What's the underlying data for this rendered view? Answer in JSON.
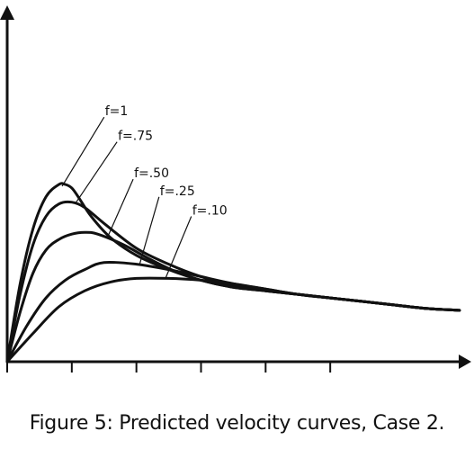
{
  "caption": "Figure 5: Predicted velocity curves, Case 2.",
  "chart_data": {
    "type": "line",
    "title": "",
    "xlabel": "",
    "ylabel": "",
    "grid": false,
    "legend": "none",
    "line_color": "#111111",
    "series": [
      {
        "name": "f=1",
        "x": [
          0,
          0.2,
          0.4,
          0.6,
          0.8,
          0.9,
          1.0,
          1.1,
          1.3,
          1.6,
          2.0,
          2.5,
          3.0,
          3.5,
          4.0,
          4.5,
          5.0,
          5.5,
          6.0,
          6.5,
          7.0
        ],
        "y": [
          0.0,
          0.44,
          0.75,
          0.93,
          1.0,
          1.0,
          0.98,
          0.93,
          0.82,
          0.7,
          0.6,
          0.52,
          0.46,
          0.42,
          0.4,
          0.38,
          0.36,
          0.34,
          0.32,
          0.3,
          0.29
        ]
      },
      {
        "name": "f=.75",
        "x": [
          0,
          0.2,
          0.4,
          0.6,
          0.8,
          1.0,
          1.2,
          1.5,
          2.0,
          2.5,
          3.0,
          3.5,
          4.0,
          4.5,
          5.0,
          5.5,
          6.0,
          6.5,
          7.0
        ],
        "y": [
          0.0,
          0.38,
          0.66,
          0.82,
          0.89,
          0.9,
          0.87,
          0.78,
          0.64,
          0.55,
          0.48,
          0.43,
          0.4,
          0.38,
          0.36,
          0.34,
          0.32,
          0.3,
          0.29
        ]
      },
      {
        "name": "f=.50",
        "x": [
          0,
          0.2,
          0.4,
          0.6,
          0.8,
          1.0,
          1.2,
          1.4,
          1.8,
          2.2,
          2.6,
          3.0,
          3.5,
          4.0,
          4.5,
          5.0,
          5.5,
          6.0,
          6.5,
          7.0
        ],
        "y": [
          0.0,
          0.28,
          0.5,
          0.63,
          0.69,
          0.72,
          0.73,
          0.72,
          0.66,
          0.58,
          0.51,
          0.46,
          0.42,
          0.4,
          0.38,
          0.36,
          0.34,
          0.32,
          0.3,
          0.29
        ]
      },
      {
        "name": "f=.25",
        "x": [
          0,
          0.3,
          0.6,
          0.9,
          1.2,
          1.5,
          2.0,
          2.5,
          3.0,
          3.5,
          4.0,
          4.5,
          5.0,
          5.5,
          6.0,
          6.5,
          7.0
        ],
        "y": [
          0.0,
          0.2,
          0.36,
          0.46,
          0.52,
          0.56,
          0.55,
          0.52,
          0.48,
          0.44,
          0.41,
          0.38,
          0.36,
          0.34,
          0.32,
          0.3,
          0.29
        ]
      },
      {
        "name": "f=.10",
        "x": [
          0,
          0.4,
          0.8,
          1.2,
          1.6,
          2.0,
          2.5,
          3.0,
          3.5,
          4.0,
          4.5,
          5.0,
          5.5,
          6.0,
          6.5,
          7.0
        ],
        "y": [
          0.0,
          0.16,
          0.31,
          0.4,
          0.45,
          0.47,
          0.47,
          0.46,
          0.44,
          0.41,
          0.38,
          0.36,
          0.34,
          0.32,
          0.3,
          0.29
        ]
      }
    ],
    "labels": [
      {
        "series": "f=1",
        "text": "f=1",
        "anchor_x": 0.85,
        "anchor_y": 0.99,
        "label_x": 1.5,
        "label_y": 1.38
      },
      {
        "series": "f=.75",
        "text": "f=.75",
        "anchor_x": 1.05,
        "anchor_y": 0.89,
        "label_x": 1.7,
        "label_y": 1.24
      },
      {
        "series": "f=.50",
        "text": "f=.50",
        "anchor_x": 1.55,
        "anchor_y": 0.7,
        "label_x": 1.95,
        "label_y": 1.03
      },
      {
        "series": "f=.25",
        "text": "f=.25",
        "anchor_x": 2.05,
        "anchor_y": 0.55,
        "label_x": 2.35,
        "label_y": 0.93
      },
      {
        "series": "f=.10",
        "text": "f=.10",
        "anchor_x": 2.45,
        "anchor_y": 0.47,
        "label_x": 2.85,
        "label_y": 0.82
      }
    ],
    "xlim": [
      0,
      7.1
    ],
    "ylim": [
      0,
      2.0
    ],
    "xticks": [
      1,
      2,
      3,
      4,
      5
    ],
    "yticks": []
  }
}
